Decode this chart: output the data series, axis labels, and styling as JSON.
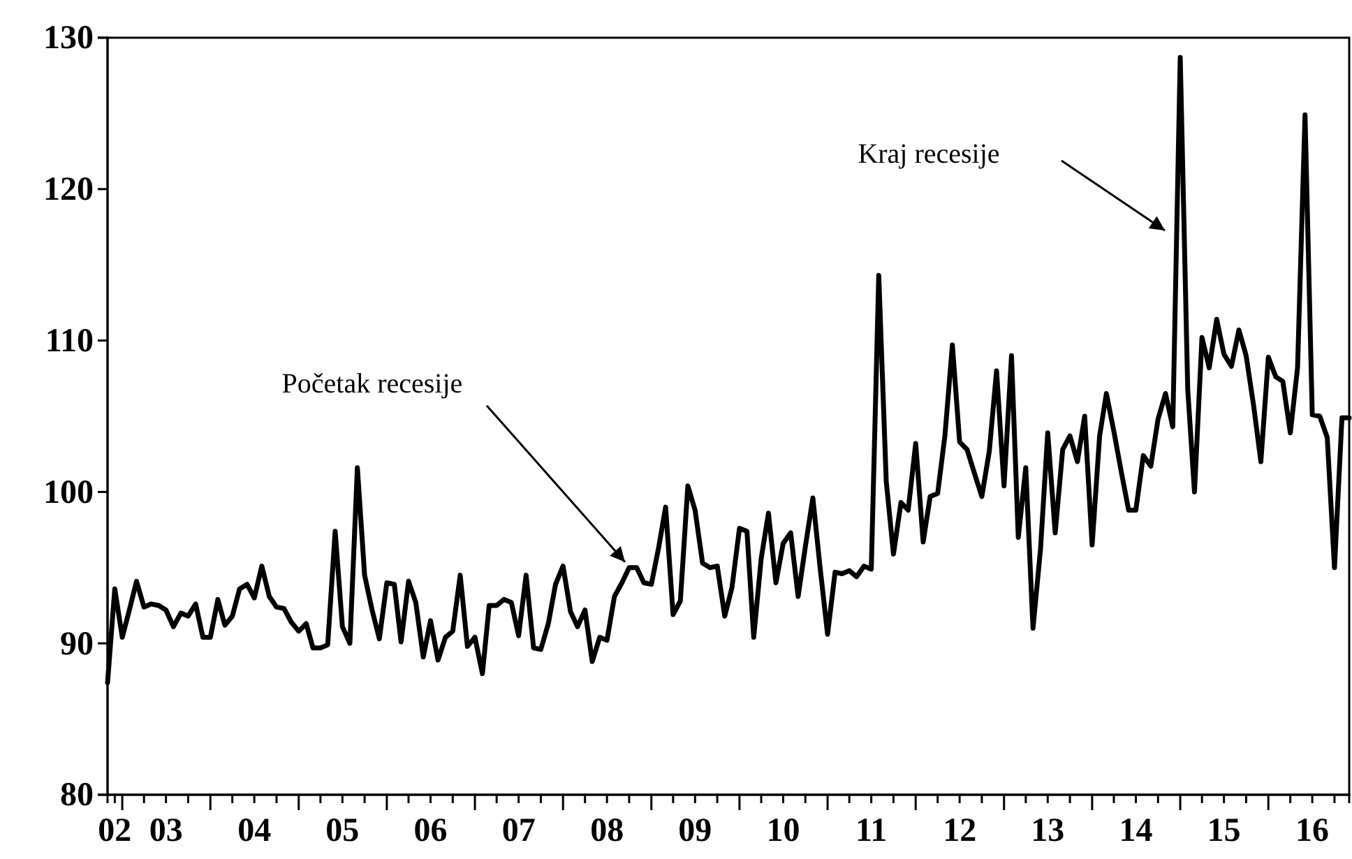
{
  "chart_data": {
    "type": "line",
    "x": [
      "2002-11",
      "2002-12",
      "2003-01",
      "2003-02",
      "2003-03",
      "2003-04",
      "2003-05",
      "2003-06",
      "2003-07",
      "2003-08",
      "2003-09",
      "2003-10",
      "2003-11",
      "2003-12",
      "2004-01",
      "2004-02",
      "2004-03",
      "2004-04",
      "2004-05",
      "2004-06",
      "2004-07",
      "2004-08",
      "2004-09",
      "2004-10",
      "2004-11",
      "2004-12",
      "2005-01",
      "2005-02",
      "2005-03",
      "2005-04",
      "2005-05",
      "2005-06",
      "2005-07",
      "2005-08",
      "2005-09",
      "2005-10",
      "2005-11",
      "2005-12",
      "2006-01",
      "2006-02",
      "2006-03",
      "2006-04",
      "2006-05",
      "2006-06",
      "2006-07",
      "2006-08",
      "2006-09",
      "2006-10",
      "2006-11",
      "2006-12",
      "2007-01",
      "2007-02",
      "2007-03",
      "2007-04",
      "2007-05",
      "2007-06",
      "2007-07",
      "2007-08",
      "2007-09",
      "2007-10",
      "2007-11",
      "2007-12",
      "2008-01",
      "2008-02",
      "2008-03",
      "2008-04",
      "2008-05",
      "2008-06",
      "2008-07",
      "2008-08",
      "2008-09",
      "2008-10",
      "2008-11",
      "2008-12",
      "2009-01",
      "2009-02",
      "2009-03",
      "2009-04",
      "2009-05",
      "2009-06",
      "2009-07",
      "2009-08",
      "2009-09",
      "2009-10",
      "2009-11",
      "2009-12",
      "2010-01",
      "2010-02",
      "2010-03",
      "2010-04",
      "2010-05",
      "2010-06",
      "2010-07",
      "2010-08",
      "2010-09",
      "2010-10",
      "2010-11",
      "2010-12",
      "2011-01",
      "2011-02",
      "2011-03",
      "2011-04",
      "2011-05",
      "2011-06",
      "2011-07",
      "2011-08",
      "2011-09",
      "2011-10",
      "2011-11",
      "2011-12",
      "2012-01",
      "2012-02",
      "2012-03",
      "2012-04",
      "2012-05",
      "2012-06",
      "2012-07",
      "2012-08",
      "2012-09",
      "2012-10",
      "2012-11",
      "2012-12",
      "2013-01",
      "2013-02",
      "2013-03",
      "2013-04",
      "2013-05",
      "2013-06",
      "2013-07",
      "2013-08",
      "2013-09",
      "2013-10",
      "2013-11",
      "2013-12",
      "2014-01",
      "2014-02",
      "2014-03",
      "2014-04",
      "2014-05",
      "2014-06",
      "2014-07",
      "2014-08",
      "2014-09",
      "2014-10",
      "2014-11",
      "2014-12",
      "2015-01",
      "2015-02",
      "2015-03",
      "2015-04",
      "2015-05",
      "2015-06",
      "2015-07",
      "2015-08",
      "2015-09",
      "2015-10",
      "2015-11",
      "2015-12",
      "2016-01",
      "2016-02",
      "2016-03",
      "2016-04",
      "2016-05",
      "2016-06",
      "2016-07",
      "2016-08",
      "2016-09",
      "2016-10",
      "2016-11",
      "2016-12"
    ],
    "series": [
      {
        "color": "#000000",
        "values": [
          87.4,
          93.6,
          90.4,
          92.3,
          94.1,
          92.4,
          92.6,
          92.5,
          92.2,
          91.1,
          92.0,
          91.8,
          92.6,
          90.4,
          90.4,
          92.9,
          91.2,
          91.8,
          93.6,
          93.9,
          93.0,
          95.1,
          93.1,
          92.4,
          92.3,
          91.4,
          90.8,
          91.3,
          89.7,
          89.7,
          89.9,
          97.4,
          91.1,
          90.0,
          101.6,
          94.5,
          92.2,
          90.3,
          94.0,
          93.9,
          90.1,
          94.1,
          92.7,
          89.1,
          91.5,
          88.9,
          90.4,
          90.8,
          94.5,
          89.8,
          90.4,
          88.0,
          92.5,
          92.5,
          92.9,
          92.7,
          90.5,
          94.5,
          89.7,
          89.6,
          91.3,
          93.9,
          95.1,
          92.1,
          91.1,
          92.2,
          88.8,
          90.4,
          90.2,
          93.1,
          94.0,
          95.0,
          95.0,
          94.0,
          93.9,
          96.4,
          99.0,
          91.9,
          92.8,
          100.4,
          98.8,
          95.3,
          95.0,
          95.1,
          91.8,
          93.7,
          97.6,
          97.4,
          90.4,
          95.6,
          98.6,
          94.0,
          96.6,
          97.3,
          93.1,
          96.4,
          99.6,
          95.0,
          90.6,
          94.7,
          94.6,
          94.8,
          94.4,
          95.1,
          94.9,
          114.3,
          100.7,
          95.9,
          99.3,
          98.8,
          103.2,
          96.7,
          99.7,
          99.9,
          103.7,
          109.7,
          103.3,
          102.8,
          101.2,
          99.7,
          102.7,
          108.0,
          100.4,
          109.0,
          97.0,
          101.6,
          91.0,
          96.2,
          103.9,
          97.3,
          102.8,
          103.7,
          102.0,
          105.0,
          96.5,
          103.7,
          106.5,
          104.0,
          101.4,
          98.8,
          98.8,
          102.4,
          101.7,
          104.8,
          106.5,
          104.3,
          128.7,
          106.8,
          100.0,
          110.2,
          108.2,
          111.4,
          109.1,
          108.3,
          110.7,
          109.0,
          105.7,
          102.0,
          108.9,
          107.6,
          107.3,
          103.9,
          108.2,
          124.9,
          105.1,
          105.0,
          103.6,
          95.0,
          104.9,
          104.9
        ]
      }
    ],
    "xlim": [
      "2002-11",
      "2016-12"
    ],
    "xticks": [
      {
        "value": "2002-12",
        "label": "02"
      },
      {
        "value": "2003-01",
        "label": null
      },
      {
        "value": "2003-04",
        "label": null
      },
      {
        "value": "2003-07",
        "label": "03"
      },
      {
        "value": "2003-10",
        "label": null
      },
      {
        "value": "2004-01",
        "label": null
      },
      {
        "value": "2004-04",
        "label": null
      },
      {
        "value": "2004-07",
        "label": "04"
      },
      {
        "value": "2004-10",
        "label": null
      },
      {
        "value": "2005-01",
        "label": null
      },
      {
        "value": "2005-04",
        "label": null
      },
      {
        "value": "2005-07",
        "label": "05"
      },
      {
        "value": "2005-10",
        "label": null
      },
      {
        "value": "2006-01",
        "label": null
      },
      {
        "value": "2006-04",
        "label": null
      },
      {
        "value": "2006-07",
        "label": "06"
      },
      {
        "value": "2006-10",
        "label": null
      },
      {
        "value": "2007-01",
        "label": null
      },
      {
        "value": "2007-04",
        "label": null
      },
      {
        "value": "2007-07",
        "label": "07"
      },
      {
        "value": "2007-10",
        "label": null
      },
      {
        "value": "2008-01",
        "label": null
      },
      {
        "value": "2008-04",
        "label": null
      },
      {
        "value": "2008-07",
        "label": "08"
      },
      {
        "value": "2008-10",
        "label": null
      },
      {
        "value": "2009-01",
        "label": null
      },
      {
        "value": "2009-04",
        "label": null
      },
      {
        "value": "2009-07",
        "label": "09"
      },
      {
        "value": "2009-10",
        "label": null
      },
      {
        "value": "2010-01",
        "label": null
      },
      {
        "value": "2010-04",
        "label": null
      },
      {
        "value": "2010-07",
        "label": "10"
      },
      {
        "value": "2010-10",
        "label": null
      },
      {
        "value": "2011-01",
        "label": null
      },
      {
        "value": "2011-04",
        "label": null
      },
      {
        "value": "2011-07",
        "label": "11"
      },
      {
        "value": "2011-10",
        "label": null
      },
      {
        "value": "2012-01",
        "label": null
      },
      {
        "value": "2012-04",
        "label": null
      },
      {
        "value": "2012-07",
        "label": "12"
      },
      {
        "value": "2012-10",
        "label": null
      },
      {
        "value": "2013-01",
        "label": null
      },
      {
        "value": "2013-04",
        "label": null
      },
      {
        "value": "2013-07",
        "label": "13"
      },
      {
        "value": "2013-10",
        "label": null
      },
      {
        "value": "2014-01",
        "label": null
      },
      {
        "value": "2014-04",
        "label": null
      },
      {
        "value": "2014-07",
        "label": "14"
      },
      {
        "value": "2014-10",
        "label": null
      },
      {
        "value": "2015-01",
        "label": null
      },
      {
        "value": "2015-04",
        "label": null
      },
      {
        "value": "2015-07",
        "label": "15"
      },
      {
        "value": "2015-10",
        "label": null
      },
      {
        "value": "2016-01",
        "label": null
      },
      {
        "value": "2016-04",
        "label": null
      },
      {
        "value": "2016-07",
        "label": "16"
      },
      {
        "value": "2016-10",
        "label": null
      }
    ],
    "ylim": [
      80,
      130
    ],
    "yticks": [
      80,
      90,
      100,
      110,
      120,
      130
    ],
    "annotations": [
      {
        "text": "Početak recesije",
        "x": "2008-10",
        "y": 95.1
      },
      "Kraj recesije"
    ]
  }
}
